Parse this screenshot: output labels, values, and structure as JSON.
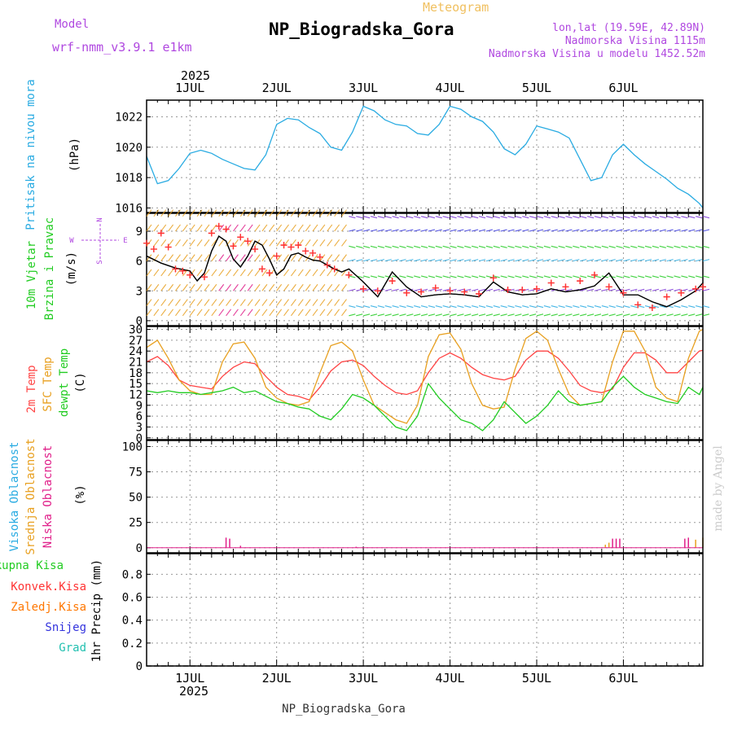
{
  "header": {
    "model_label": "Model",
    "model_name": "wrf-nmm_v3.9.1 e1km",
    "product": "Meteogram",
    "location": "NP_Biogradska_Gora",
    "coords": "lon,lat (19.59E, 42.89N)",
    "elevation": "Nadmorska Visina 1115m",
    "model_elevation": "Nadmorska Visina u modelu 1452.52m",
    "credit": "made by Angel",
    "footer_location": "NP_Biogradska_Gora"
  },
  "time_axis": {
    "year": "2025",
    "day_labels": [
      "1JUL",
      "2JUL",
      "3JUL",
      "4JUL",
      "5JUL",
      "6JUL"
    ],
    "range_hours": [
      -12,
      142
    ]
  },
  "colors": {
    "pressure": "#29abe2",
    "wind_speed": "#000000",
    "gust": "#ff3333",
    "temp2m": "#ff4444",
    "sfc_temp": "#e8a020",
    "dewpoint": "#22cc22",
    "high_cloud": "#29abe2",
    "mid_cloud": "#e8a020",
    "low_cloud": "#e0208a",
    "total_precip": "#22cc22",
    "conv_precip": "#ff3333",
    "frozen_precip": "#ff7700",
    "snow": "#3333dd",
    "graupel": "#22c0b0",
    "credit": "#cccccc",
    "purple": "#b048e0"
  },
  "chart_data": [
    {
      "type": "line",
      "panel": "pressure",
      "ylabel": "(hPa)",
      "side_labels": [
        "Pritisak na nivou mora"
      ],
      "yticks": [
        1016,
        1018,
        1020,
        1022
      ],
      "ylim": [
        1015.7,
        1023.1
      ],
      "grid": true,
      "series": [
        {
          "key": "pressure",
          "x": [
            -12,
            -9,
            -6,
            -3,
            0,
            3,
            6,
            9,
            12,
            15,
            18,
            21,
            24,
            27,
            30,
            33,
            36,
            39,
            42,
            45,
            48,
            51,
            54,
            57,
            60,
            63,
            66,
            69,
            72,
            75,
            78,
            81,
            84,
            87,
            90,
            93,
            96,
            99,
            102,
            105,
            108,
            111,
            114,
            117,
            120,
            123,
            126,
            129,
            132,
            135,
            138,
            141,
            142
          ],
          "values": [
            1019.4,
            1017.6,
            1017.8,
            1018.6,
            1019.6,
            1019.8,
            1019.6,
            1019.2,
            1018.9,
            1018.6,
            1018.5,
            1019.5,
            1021.5,
            1021.9,
            1021.8,
            1021.3,
            1020.9,
            1020.0,
            1019.8,
            1021.0,
            1022.7,
            1022.4,
            1021.8,
            1021.5,
            1021.4,
            1020.9,
            1020.8,
            1021.5,
            1022.7,
            1022.5,
            1022.0,
            1021.7,
            1021.0,
            1019.9,
            1019.5,
            1020.2,
            1021.4,
            1021.2,
            1021.0,
            1020.6,
            1019.2,
            1017.8,
            1018.0,
            1019.5,
            1020.2,
            1019.5,
            1018.9,
            1018.4,
            1017.9,
            1017.3,
            1016.9,
            1016.3,
            1016.0
          ]
        }
      ]
    },
    {
      "type": "line",
      "panel": "wind",
      "ylabel": "(m/s)",
      "side_labels": [
        "10m Vjetar",
        "Brzina i Pravac"
      ],
      "direction_key": {
        "n": "N",
        "e": "E",
        "w": "W",
        "s": "S"
      },
      "yticks": [
        0,
        3,
        6,
        9
      ],
      "ylim": [
        -0.5,
        10.8
      ],
      "grid": true,
      "series": [
        {
          "key": "wind_speed",
          "mark": "line",
          "x": [
            -12,
            -8,
            -4,
            0,
            2,
            4,
            6,
            8,
            10,
            12,
            14,
            16,
            18,
            20,
            22,
            24,
            26,
            28,
            30,
            32,
            34,
            36,
            38,
            40,
            42,
            44,
            48,
            52,
            56,
            60,
            64,
            68,
            72,
            76,
            80,
            84,
            88,
            92,
            96,
            100,
            104,
            108,
            112,
            116,
            120,
            124,
            128,
            132,
            136,
            140,
            142
          ],
          "values": [
            6.5,
            5.8,
            5.3,
            5.0,
            4.0,
            4.8,
            7.0,
            8.5,
            8.0,
            6.2,
            5.4,
            6.5,
            8.0,
            7.6,
            6.2,
            4.6,
            5.2,
            6.6,
            6.8,
            6.4,
            6.1,
            6.0,
            5.6,
            5.2,
            4.9,
            5.2,
            3.9,
            2.4,
            4.9,
            3.4,
            2.4,
            2.6,
            2.7,
            2.6,
            2.4,
            3.9,
            2.9,
            2.6,
            2.7,
            3.2,
            2.9,
            3.1,
            3.5,
            4.8,
            2.6,
            2.6,
            1.9,
            1.4,
            2.1,
            3.0,
            3.8
          ]
        },
        {
          "key": "gust",
          "mark": "plus",
          "x": [
            -12,
            -10,
            -8,
            -6,
            -4,
            -2,
            0,
            4,
            6,
            8,
            10,
            12,
            14,
            16,
            18,
            20,
            22,
            24,
            26,
            28,
            30,
            32,
            34,
            36,
            38,
            40,
            44,
            48,
            52,
            56,
            60,
            64,
            68,
            72,
            76,
            80,
            84,
            88,
            92,
            96,
            100,
            104,
            108,
            112,
            116,
            120,
            124,
            128,
            132,
            136,
            140,
            142
          ],
          "values": [
            7.8,
            7.2,
            8.8,
            7.4,
            5.2,
            5.0,
            4.6,
            4.4,
            8.8,
            9.5,
            9.2,
            7.5,
            8.4,
            8.0,
            7.2,
            5.2,
            4.8,
            6.5,
            7.6,
            7.4,
            7.6,
            7.0,
            6.8,
            6.4,
            5.6,
            5.2,
            4.6,
            3.2,
            3.0,
            4.0,
            2.8,
            2.9,
            3.3,
            3.0,
            2.9,
            2.7,
            4.3,
            3.1,
            3.1,
            3.2,
            3.8,
            3.4,
            4.0,
            4.6,
            3.4,
            2.8,
            1.6,
            1.3,
            2.4,
            2.8,
            3.2,
            3.4
          ]
        }
      ]
    },
    {
      "type": "line",
      "panel": "temperature",
      "ylabel": "(C)",
      "side_labels": [
        "2m Temp",
        "SFC Temp",
        "dewpt Temp"
      ],
      "yticks": [
        0,
        3,
        6,
        9,
        12,
        15,
        18,
        21,
        24,
        27,
        30
      ],
      "ylim": [
        -0.5,
        30.8
      ],
      "grid": true,
      "series": [
        {
          "key": "temp2m",
          "x": [
            -12,
            -9,
            -6,
            -3,
            0,
            3,
            6,
            9,
            12,
            15,
            18,
            21,
            24,
            27,
            30,
            33,
            36,
            39,
            42,
            45,
            48,
            51,
            54,
            57,
            60,
            63,
            66,
            69,
            72,
            75,
            78,
            81,
            84,
            87,
            90,
            93,
            96,
            99,
            102,
            105,
            108,
            111,
            114,
            117,
            120,
            123,
            126,
            129,
            132,
            135,
            138,
            141,
            142
          ],
          "values": [
            21,
            22.5,
            20,
            16,
            14.5,
            14,
            13.5,
            17,
            19.5,
            21,
            20.5,
            17,
            14,
            12,
            11.5,
            10.5,
            14,
            18.5,
            21,
            21.5,
            20,
            17,
            14.5,
            12.5,
            12,
            13,
            18,
            22,
            23.5,
            22,
            19.5,
            17.5,
            16.5,
            16,
            17,
            21.5,
            24,
            24,
            22,
            18.5,
            14.5,
            13,
            12.5,
            13.5,
            19.5,
            23.5,
            23.5,
            21.5,
            18,
            18,
            21,
            24,
            24.2
          ]
        },
        {
          "key": "sfc_temp",
          "x": [
            -12,
            -9,
            -6,
            -3,
            0,
            3,
            6,
            9,
            12,
            15,
            18,
            21,
            24,
            27,
            30,
            33,
            36,
            39,
            42,
            45,
            48,
            51,
            54,
            57,
            60,
            63,
            66,
            69,
            72,
            75,
            78,
            81,
            84,
            87,
            90,
            93,
            96,
            99,
            102,
            105,
            108,
            111,
            114,
            117,
            120,
            123,
            126,
            129,
            132,
            135,
            138,
            141,
            142
          ],
          "values": [
            25,
            27,
            22,
            16,
            13,
            12,
            12,
            21,
            26,
            26.5,
            22,
            14,
            11,
            9.5,
            9,
            10,
            18,
            25.5,
            26.5,
            24,
            16,
            9,
            7,
            5,
            4,
            9,
            22.5,
            28.5,
            29,
            24.5,
            15,
            9,
            8,
            8.5,
            19,
            27.5,
            29.5,
            27,
            19,
            12,
            9,
            9.5,
            10,
            21,
            29.5,
            29.5,
            24,
            14,
            11,
            10,
            22,
            29.5,
            30
          ]
        },
        {
          "key": "dewpoint",
          "x": [
            -12,
            -9,
            -6,
            -3,
            0,
            3,
            6,
            9,
            12,
            15,
            18,
            21,
            24,
            27,
            30,
            33,
            36,
            39,
            42,
            45,
            48,
            51,
            54,
            57,
            60,
            63,
            66,
            69,
            72,
            75,
            78,
            81,
            84,
            87,
            90,
            93,
            96,
            99,
            102,
            105,
            108,
            111,
            114,
            117,
            120,
            123,
            126,
            129,
            132,
            135,
            138,
            141,
            142
          ],
          "values": [
            13,
            12.5,
            13,
            12.5,
            12.5,
            12,
            12.5,
            13,
            14,
            12.5,
            13,
            11.5,
            10,
            9.5,
            8.5,
            8,
            6,
            5,
            8,
            12,
            11,
            9,
            6,
            3,
            2,
            6,
            15,
            11,
            8,
            5,
            4,
            2,
            5,
            10,
            7,
            4,
            6,
            9,
            13,
            10,
            9,
            9.5,
            10,
            14,
            17,
            14,
            12,
            11,
            10,
            9.5,
            14,
            12,
            14
          ]
        }
      ]
    },
    {
      "type": "bar",
      "panel": "clouds",
      "ylabel": "(%)",
      "side_labels": [
        "Visoka Oblacnost",
        "Srednja Oblacnost",
        "Niska Oblacnost"
      ],
      "yticks": [
        0,
        25,
        50,
        75,
        100
      ],
      "ylim": [
        -5,
        106
      ],
      "grid": true,
      "series": [
        {
          "key": "high_cloud",
          "x": [],
          "values": []
        },
        {
          "key": "mid_cloud",
          "x": [
            115,
            116,
            140,
            142
          ],
          "values": [
            3,
            5,
            8,
            10
          ]
        },
        {
          "key": "low_cloud",
          "x": [
            10,
            11,
            14,
            46,
            117,
            118,
            119,
            137,
            138
          ],
          "values": [
            10,
            9,
            2,
            1,
            9,
            9,
            9,
            9,
            10
          ]
        }
      ]
    },
    {
      "type": "bar",
      "panel": "precip",
      "ylabel": "1hr Precip (mm)",
      "side_labels": [
        "Ukupna Kisa",
        "Konvek.Kisa",
        "Zaledj.Kisa",
        "Snijeg",
        "Grad"
      ],
      "yticks": [
        0,
        0.2,
        0.4,
        0.6,
        0.8
      ],
      "ylim": [
        0,
        0.98
      ],
      "grid": true,
      "series": [
        {
          "key": "total_precip",
          "x": [],
          "values": []
        },
        {
          "key": "conv_precip",
          "x": [],
          "values": []
        },
        {
          "key": "frozen_precip",
          "x": [],
          "values": []
        },
        {
          "key": "snow",
          "x": [],
          "values": []
        },
        {
          "key": "graupel",
          "x": [],
          "values": []
        }
      ]
    }
  ]
}
